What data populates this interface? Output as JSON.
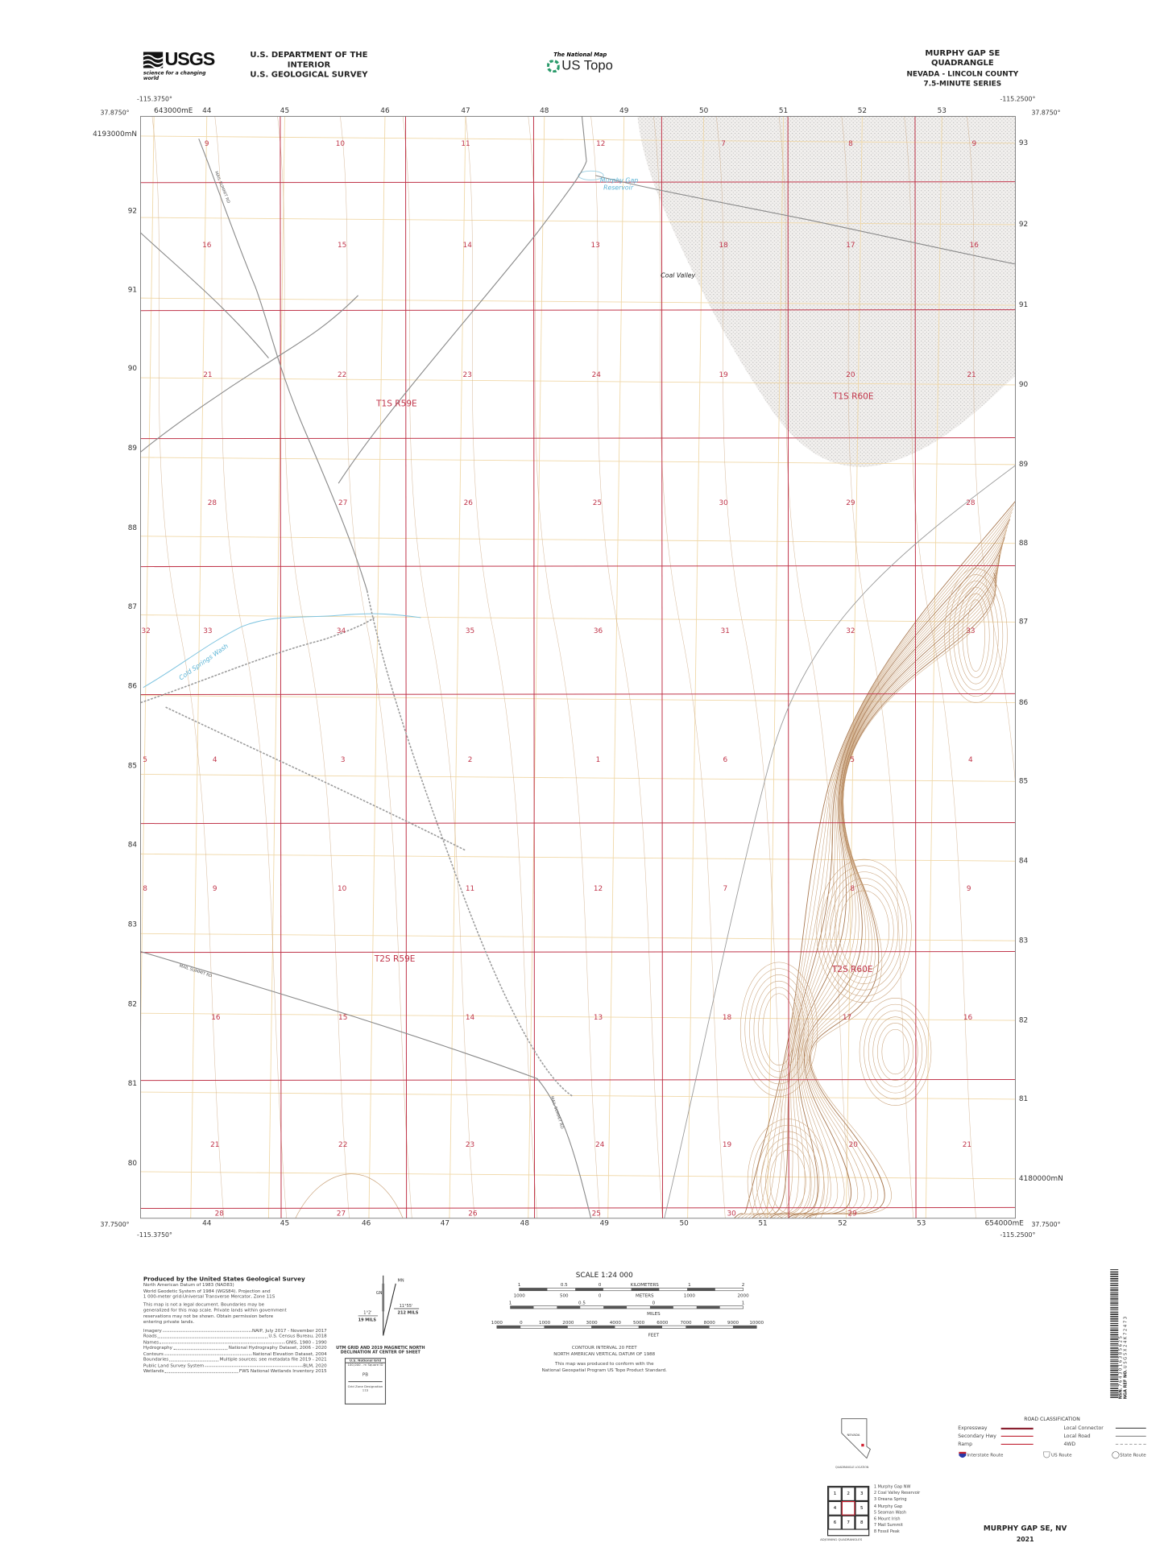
{
  "header": {
    "agency_line1": "U.S. DEPARTMENT OF THE INTERIOR",
    "agency_line2": "U.S. GEOLOGICAL SURVEY",
    "usgs_logo": "USGS",
    "usgs_tagline": "science for a changing world",
    "national_map_line1": "The National Map",
    "national_map_line2": "US Topo",
    "quad_title": "MURPHY GAP SE QUADRANGLE",
    "quad_state_county": "NEVADA - LINCOLN COUNTY",
    "quad_series": "7.5-MINUTE SERIES"
  },
  "corners": {
    "nw_lon": "-115.3750°",
    "nw_lat": "37.8750°",
    "ne_lon": "-115.2500°",
    "ne_lat": "37.8750°",
    "sw_lon": "-115.3750°",
    "sw_lat": "37.7500°",
    "se_lon": "-115.2500°",
    "se_lat": "37.7500°"
  },
  "utm": {
    "top_eastings": [
      "643000mE",
      "44",
      "45",
      "46",
      "47",
      "48",
      "49",
      "50",
      "51",
      "52",
      "53"
    ],
    "bottom_eastings": [
      "44",
      "45",
      "46",
      "47",
      "48",
      "49",
      "50",
      "51",
      "52",
      "53",
      "654000mE"
    ],
    "left_northings": [
      "4193000mN",
      "92",
      "91",
      "90",
      "89",
      "88",
      "87",
      "86",
      "85",
      "84",
      "83",
      "82",
      "81",
      "80"
    ],
    "right_northings": [
      "93",
      "92",
      "91",
      "90",
      "89",
      "88",
      "87",
      "86",
      "85",
      "84",
      "83",
      "82",
      "81",
      "4180000mN"
    ]
  },
  "sections": [
    [
      "9",
      "10",
      "11",
      "12",
      "7",
      "8",
      "9"
    ],
    [
      "16",
      "15",
      "14",
      "13",
      "18",
      "17",
      "16"
    ],
    [
      "21",
      "22",
      "23",
      "24",
      "19",
      "20",
      "21"
    ],
    [
      "28",
      "27",
      "26",
      "25",
      "30",
      "29",
      "28"
    ],
    [
      "32",
      "33",
      "34",
      "35",
      "36",
      "31",
      "32",
      "33"
    ],
    [
      "5",
      "4",
      "3",
      "2",
      "1",
      "6",
      "5",
      "4"
    ],
    [
      "8",
      "9",
      "10",
      "11",
      "12",
      "7",
      "8",
      "9"
    ],
    [
      "16",
      "15",
      "14",
      "13",
      "18",
      "17",
      "16"
    ],
    [
      "21",
      "22",
      "23",
      "24",
      "19",
      "20",
      "21"
    ],
    [
      "28",
      "27",
      "26",
      "25",
      "30",
      "29"
    ]
  ],
  "townships": [
    "T1S R59E",
    "T1S R60E",
    "T2S R59E",
    "T2S R60E"
  ],
  "place_names": {
    "reservoir_line1": "Murphy Gap",
    "reservoir_line2": "Reservoir",
    "valley": "Coal Valley",
    "wash": "Cold Springs Wash",
    "road_1": "MAIL SUMMIT RD",
    "road_2": "MAIL SUMMIT RD",
    "road_3": "MAIL SUMMIT RD"
  },
  "colors": {
    "section_line": "#c0354a",
    "utm_grid": "#f0d8a8",
    "contour": "#c9a27a",
    "index_contour": "#a87850",
    "water": "#5ab4d6",
    "road": "#888888",
    "stipple": "#b8b8b8"
  },
  "credits": {
    "title": "Produced by the United States Geological Survey",
    "datum_lines": [
      "North American Datum of 1983 (NAD83)",
      "World Geodetic System of 1984 (WGS84).  Projection and",
      "1 000-meter grid:Universal Transverse Mercator, Zone 11S"
    ],
    "disclaimer": [
      "This map is not a legal document. Boundaries may be",
      "generalized for this map scale. Private lands within government",
      "reservations may not be shown. Obtain permission before",
      "entering private lands."
    ],
    "sources": [
      {
        "label": "Imagery",
        "value": "NAIP, July 2017 - November 2017"
      },
      {
        "label": "Roads",
        "value": "U.S. Census Bureau, 2018"
      },
      {
        "label": "Names",
        "value": "GNIS, 1980 - 1990"
      },
      {
        "label": "Hydrography",
        "value": "National Hydrography Dataset, 2006 - 2020"
      },
      {
        "label": "Contours",
        "value": "National Elevation Dataset, 2004"
      },
      {
        "label": "Boundaries",
        "value": "Multiple sources; see metadata file 2019 - 2021"
      },
      {
        "label": "Public Land Survey System",
        "value": "BLM, 2020"
      },
      {
        "label": "Wetlands",
        "value": "FWS National Wetlands Inventory 2015"
      }
    ]
  },
  "declination": {
    "gn_label": "GN",
    "mn_label": "MN",
    "left_angle": "1°2'",
    "left_mils": "19 MILS",
    "right_angle": "11°55'",
    "right_mils": "212 MILS",
    "caption_line1": "UTM GRID AND 2019 MAGNETIC NORTH",
    "caption_line2": "DECLINATION AT CENTER OF SHEET"
  },
  "national_grid": {
    "title": "U.S. National Grid",
    "square_id_label": "100,000 - m Square ID",
    "square_id": "PB",
    "zone_label": "Grid Zone Designation",
    "zone": "11S"
  },
  "scale": {
    "title": "SCALE 1:24 000",
    "km_ticks": [
      "1",
      "0.5",
      "0",
      "KILOMETERS",
      "1",
      "2"
    ],
    "m_ticks": [
      "1000",
      "500",
      "0",
      "METERS",
      "1000",
      "2000"
    ],
    "mi_ticks": [
      "1",
      "0.5",
      "0",
      "1"
    ],
    "mi_unit": "MILES",
    "ft_ticks": [
      "1000",
      "0",
      "1000",
      "2000",
      "3000",
      "4000",
      "5000",
      "6000",
      "7000",
      "8000",
      "9000",
      "10000"
    ],
    "ft_unit": "FEET",
    "contour_interval": "CONTOUR INTERVAL 20 FEET",
    "vertical_datum": "NORTH AMERICAN VERTICAL DATUM OF 1988",
    "standard_line1": "This map was produced to conform with the",
    "standard_line2": "National Geospatial Program US Topo Product Standard."
  },
  "location": {
    "state": "NEVADA",
    "caption": "QUADRANGLE LOCATION"
  },
  "adjoining": {
    "caption": "ADJOINING QUADRANGLES",
    "cells": [
      "1",
      "2",
      "3",
      "4",
      "",
      "5",
      "6",
      "7",
      "8"
    ],
    "names": [
      "1 Murphy Gap NW",
      "2 Coal Valley Reservoir",
      "3 Oreana Spring",
      "4 Murphy Gap",
      "5 Seaman Wash",
      "6 Mount Irish",
      "7 Mail Summit",
      "8 Fossil Peak"
    ]
  },
  "road_classification": {
    "title": "ROAD CLASSIFICATION",
    "left": [
      "Expressway",
      "Secondary Hwy",
      "Ramp"
    ],
    "right": [
      "Local Connector",
      "Local Road",
      "4WD"
    ],
    "shields": [
      "Interstate Route",
      "US Route",
      "State Route"
    ]
  },
  "footer": {
    "name": "MURPHY GAP SE,  NV",
    "year": "2021"
  },
  "barcode": {
    "nsn_label": "NSN.",
    "nsn": "7643016385625",
    "nga_label": "NGA REF NO.",
    "nga": "USGSX24K72473"
  }
}
